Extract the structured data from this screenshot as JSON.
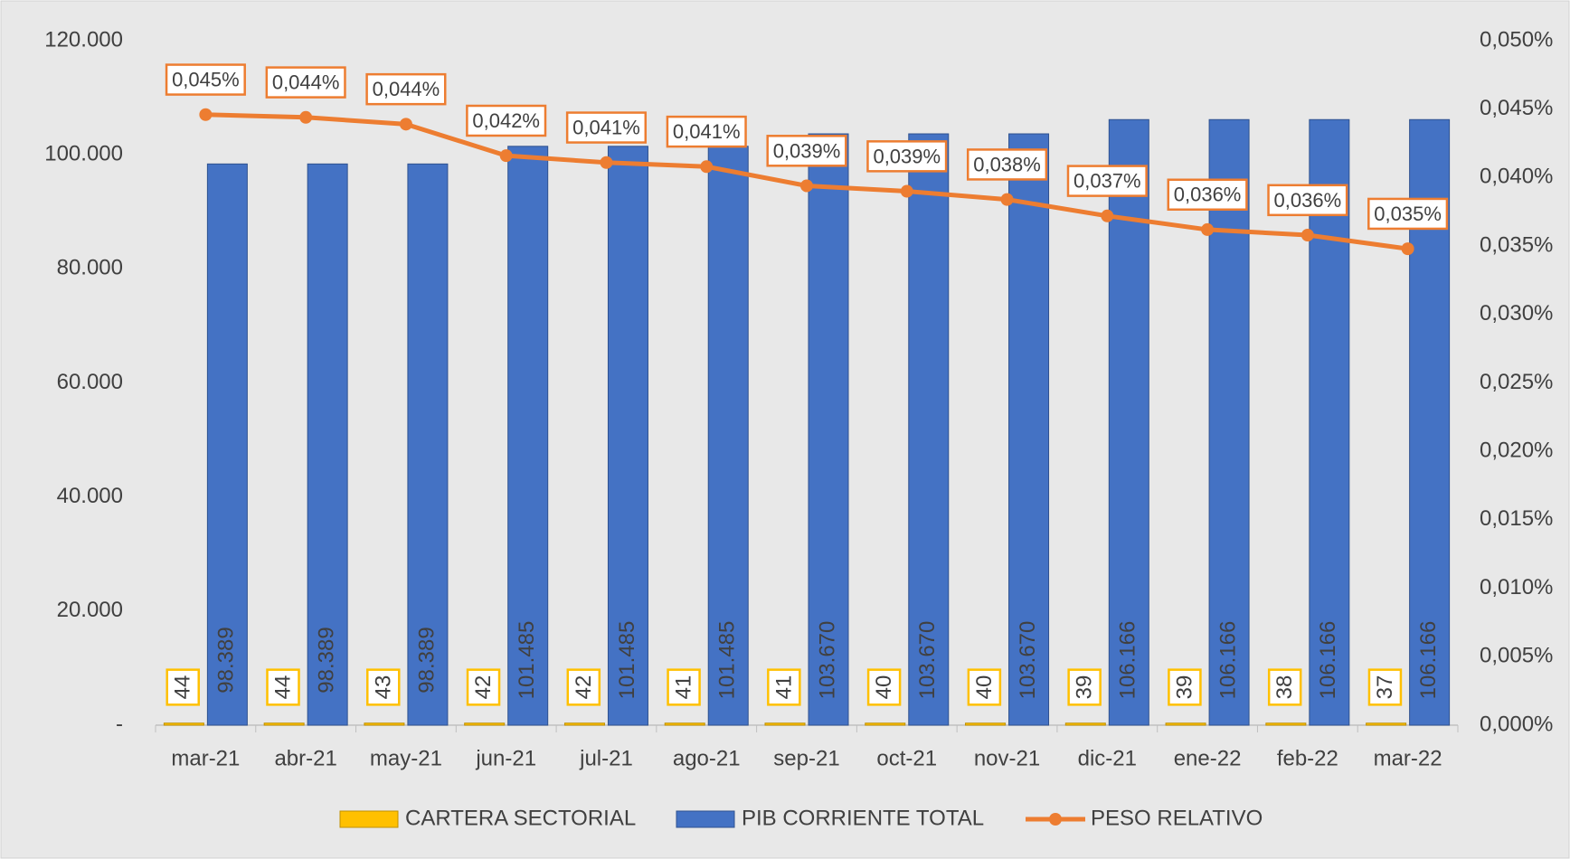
{
  "chart_data": {
    "type": "bar",
    "categories": [
      "mar-21",
      "abr-21",
      "may-21",
      "jun-21",
      "jul-21",
      "ago-21",
      "sep-21",
      "oct-21",
      "nov-21",
      "dic-21",
      "ene-22",
      "feb-22",
      "mar-22"
    ],
    "series": [
      {
        "name": "CARTERA SECTORIAL",
        "type": "bar",
        "color": "#ffc000",
        "values": [
          44,
          44,
          43,
          42,
          42,
          41,
          41,
          40,
          40,
          39,
          39,
          38,
          37
        ]
      },
      {
        "name": "PIB CORRIENTE TOTAL",
        "type": "bar",
        "color": "#4472c4",
        "values": [
          98389,
          98389,
          98389,
          101485,
          101485,
          101485,
          103670,
          103670,
          103670,
          106166,
          106166,
          106166,
          106166
        ],
        "value_labels": [
          "98.389",
          "98.389",
          "98.389",
          "101.485",
          "101.485",
          "101.485",
          "103.670",
          "103.670",
          "103.670",
          "106.166",
          "106.166",
          "106.166",
          "106.166"
        ]
      },
      {
        "name": "PESO RELATIVO",
        "type": "line",
        "axis": "y2",
        "color": "#ed7d31",
        "values": [
          0.0446,
          0.0444,
          0.0439,
          0.0416,
          0.0411,
          0.0408,
          0.0394,
          0.039,
          0.0384,
          0.0372,
          0.0362,
          0.0358,
          0.0348
        ],
        "value_labels": [
          "0,045%",
          "0,044%",
          "0,044%",
          "0,042%",
          "0,041%",
          "0,041%",
          "0,039%",
          "0,039%",
          "0,038%",
          "0,037%",
          "0,036%",
          "0,036%",
          "0,035%"
        ]
      }
    ],
    "ylim": [
      0,
      120000
    ],
    "yticks": [
      {
        "value": 0,
        "label": "-"
      },
      {
        "value": 20000,
        "label": "20.000"
      },
      {
        "value": 40000,
        "label": "40.000"
      },
      {
        "value": 60000,
        "label": "60.000"
      },
      {
        "value": 80000,
        "label": "80.000"
      },
      {
        "value": 100000,
        "label": "100.000"
      },
      {
        "value": 120000,
        "label": "120.000"
      }
    ],
    "y2lim": [
      0,
      0.05
    ],
    "y2ticks": [
      {
        "value": 0,
        "label": "0,000%"
      },
      {
        "value": 0.005,
        "label": "0,005%"
      },
      {
        "value": 0.01,
        "label": "0,010%"
      },
      {
        "value": 0.015,
        "label": "0,015%"
      },
      {
        "value": 0.02,
        "label": "0,020%"
      },
      {
        "value": 0.025,
        "label": "0,025%"
      },
      {
        "value": 0.03,
        "label": "0,030%"
      },
      {
        "value": 0.035,
        "label": "0,035%"
      },
      {
        "value": 0.04,
        "label": "0,040%"
      },
      {
        "value": 0.045,
        "label": "0,045%"
      },
      {
        "value": 0.05,
        "label": "0,050%"
      }
    ],
    "grid": false,
    "legend": "bottom"
  }
}
